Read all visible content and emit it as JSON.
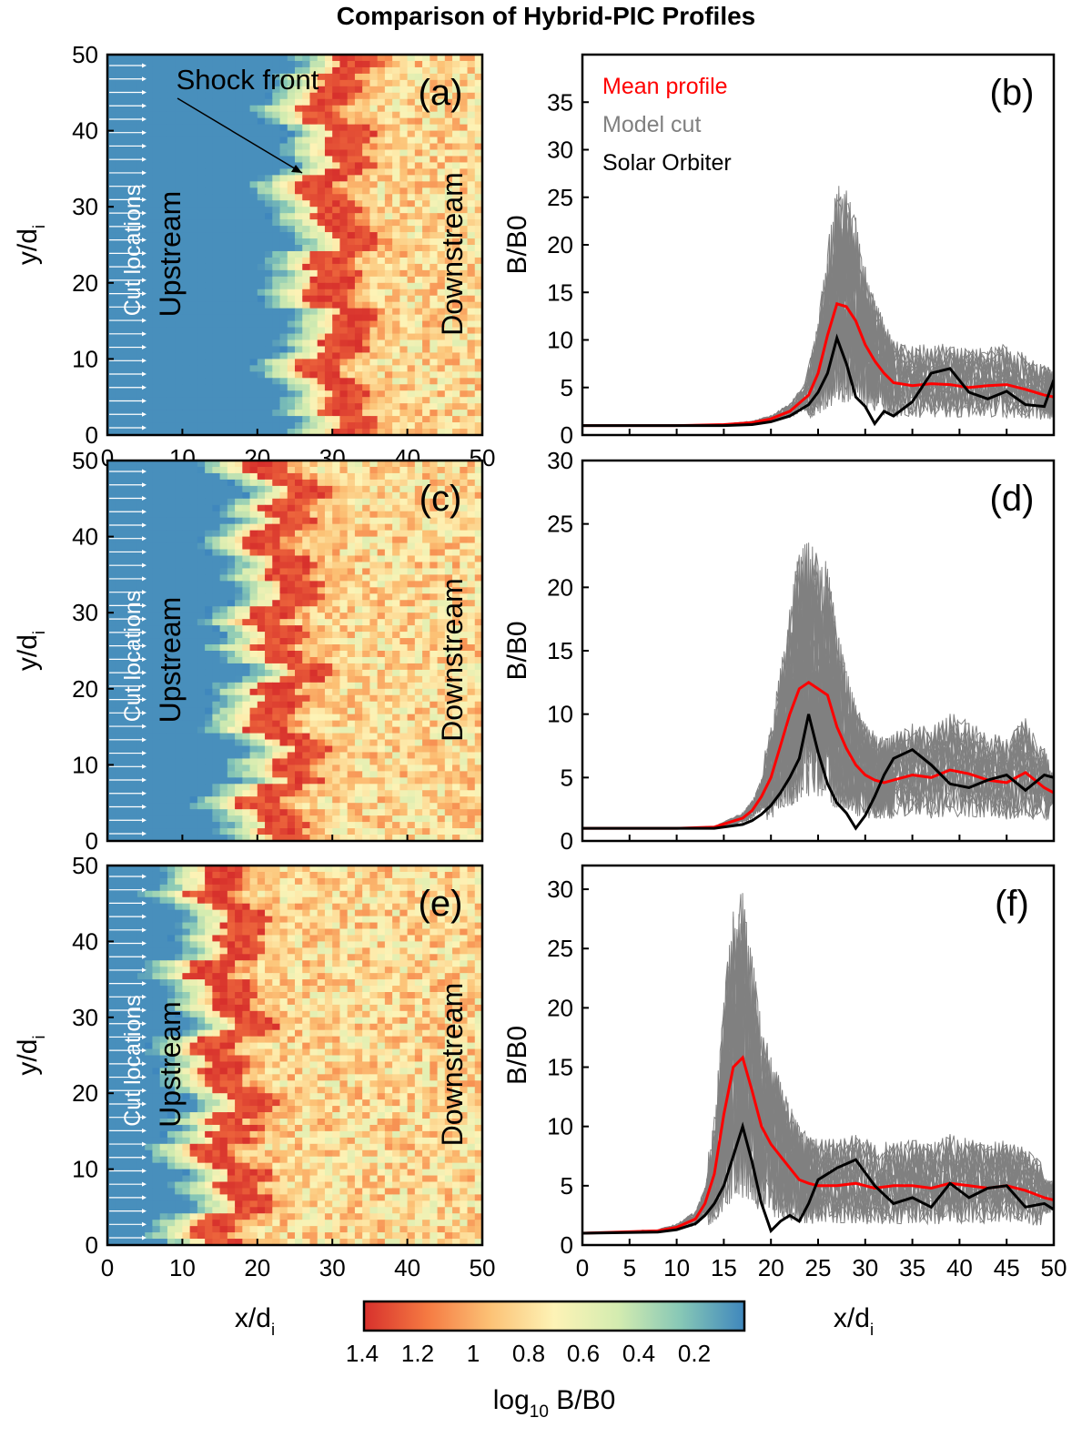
{
  "title": "Comparison of Hybrid-PIC Profiles",
  "colors": {
    "mean": "#ff0000",
    "model": "#808080",
    "solar": "#000000",
    "upstream": "#3b7db5",
    "colormap": [
      "#d7302c",
      "#f57a42",
      "#fcc276",
      "#fdf3b6",
      "#d4ecb0",
      "#86c7b6",
      "#3f87bd"
    ]
  },
  "annotations": {
    "shock_front": "Shock front",
    "upstream": "Upstream",
    "downstream": "Downstream",
    "cut_locations": "Cut locations"
  },
  "colorbar": {
    "ticks": [
      "1.4",
      "1.2",
      "1",
      "0.8",
      "0.6",
      "0.4",
      "0.2"
    ],
    "label": "log",
    "label_sub": "10",
    "label_tail": " B/B0"
  },
  "chart_data": [
    {
      "panel": "(a)",
      "type": "heatmap",
      "xlabel": "x/d",
      "xlabel_sub": "i",
      "ylabel": "y/d",
      "ylabel_sub": "i",
      "xlim": [
        0,
        50
      ],
      "ylim": [
        0,
        50
      ],
      "xticks": [
        "0",
        "10",
        "20",
        "30",
        "40",
        "50"
      ],
      "yticks": [
        "0",
        "10",
        "20",
        "30",
        "40",
        "50"
      ],
      "shock_x": 31
    },
    {
      "panel": "(b)",
      "type": "line",
      "ylabel": "B/B0",
      "xlim": [
        0,
        50
      ],
      "ylim": [
        0,
        40
      ],
      "yticks": [
        "0",
        "5",
        "10",
        "15",
        "20",
        "25",
        "30",
        "35"
      ],
      "legend": [
        "Mean profile",
        "Model cut",
        "Solar Orbiter"
      ],
      "legend_position": "top-left",
      "x": [
        0,
        10,
        15,
        18,
        20,
        22,
        24,
        25,
        26,
        27,
        28,
        29,
        30,
        31,
        32,
        33,
        35,
        37,
        39,
        41,
        43,
        45,
        47,
        49,
        50
      ],
      "series": [
        {
          "name": "Mean profile",
          "values": [
            1,
            1,
            1.1,
            1.3,
            1.7,
            2.5,
            4.2,
            6.5,
            10.5,
            13.8,
            13.5,
            12,
            9.5,
            7.8,
            6.5,
            5.5,
            5.2,
            5.4,
            5.3,
            5,
            5.2,
            5.3,
            4.8,
            4.2,
            4
          ]
        },
        {
          "name": "Solar Orbiter",
          "values": [
            1,
            1,
            1,
            1.1,
            1.4,
            2,
            3.2,
            4.5,
            6.5,
            10.2,
            7.5,
            4,
            3,
            1.2,
            2.5,
            2,
            3.5,
            6.5,
            7,
            4.5,
            3.8,
            4.6,
            3.2,
            3,
            5.8
          ]
        }
      ]
    },
    {
      "panel": "(c)",
      "type": "heatmap",
      "ylabel": "y/d",
      "ylabel_sub": "i",
      "xlim": [
        0,
        50
      ],
      "ylim": [
        0,
        50
      ],
      "yticks": [
        "0",
        "10",
        "20",
        "30",
        "40",
        "50"
      ],
      "shock_x": 24
    },
    {
      "panel": "(d)",
      "type": "line",
      "ylabel": "B/B0",
      "xlim": [
        0,
        50
      ],
      "ylim": [
        0,
        30
      ],
      "yticks": [
        "0",
        "5",
        "10",
        "15",
        "20",
        "25",
        "30"
      ],
      "x": [
        0,
        10,
        14,
        17,
        18,
        19,
        20,
        21,
        22,
        23,
        24,
        25,
        26,
        27,
        28,
        29,
        30,
        31,
        32,
        33,
        35,
        37,
        39,
        41,
        43,
        45,
        47,
        49,
        50
      ],
      "series": [
        {
          "name": "Mean profile",
          "values": [
            1,
            1,
            1.1,
            1.8,
            2.4,
            3.5,
            5,
            7.5,
            10,
            12,
            12.5,
            12,
            11.5,
            9,
            7.3,
            6,
            5.2,
            4.8,
            4.6,
            4.8,
            5.2,
            5,
            5.6,
            5.3,
            4.8,
            4.6,
            5.4,
            4.2,
            3.8
          ]
        },
        {
          "name": "Solar Orbiter",
          "values": [
            1,
            1,
            1,
            1.3,
            1.6,
            2.1,
            2.8,
            3.8,
            5,
            6.5,
            10,
            7,
            4.5,
            3,
            2.2,
            1,
            2,
            3.5,
            5.2,
            6.5,
            7.2,
            6,
            4.5,
            4.2,
            4.8,
            5.2,
            4,
            5.2,
            5
          ]
        }
      ]
    },
    {
      "panel": "(e)",
      "type": "heatmap",
      "xlabel": "x/d",
      "xlabel_sub": "i",
      "ylabel": "y/d",
      "ylabel_sub": "i",
      "xlim": [
        0,
        50
      ],
      "ylim": [
        0,
        50
      ],
      "xticks": [
        "0",
        "10",
        "20",
        "30",
        "40",
        "50"
      ],
      "yticks": [
        "0",
        "10",
        "20",
        "30",
        "40",
        "50"
      ],
      "shock_x": 17
    },
    {
      "panel": "(f)",
      "type": "line",
      "xlabel": "x/d",
      "xlabel_sub": "i",
      "ylabel": "B/B0",
      "xlim": [
        0,
        50
      ],
      "ylim": [
        0,
        32
      ],
      "xticks": [
        "0",
        "5",
        "10",
        "15",
        "20",
        "25",
        "30",
        "35",
        "40",
        "45",
        "50"
      ],
      "yticks": [
        "0",
        "5",
        "10",
        "15",
        "20",
        "25",
        "30"
      ],
      "x": [
        0,
        8,
        10,
        12,
        13,
        14,
        15,
        16,
        17,
        18,
        19,
        20,
        21,
        22,
        23,
        24,
        25,
        27,
        29,
        31,
        33,
        35,
        37,
        39,
        41,
        43,
        45,
        47,
        49,
        50
      ],
      "series": [
        {
          "name": "Mean profile",
          "values": [
            1,
            1.2,
            1.5,
            2.2,
            3.5,
            6,
            11,
            15,
            15.8,
            13,
            10,
            8.5,
            7.5,
            6.5,
            5.5,
            5.2,
            5,
            5,
            5.2,
            4.8,
            5,
            5,
            4.8,
            5.2,
            5,
            4.8,
            5,
            4.6,
            4,
            3.8
          ]
        },
        {
          "name": "Solar Orbiter",
          "values": [
            1,
            1.1,
            1.3,
            1.8,
            2.5,
            3.5,
            5,
            7.5,
            10,
            7,
            3.5,
            1.2,
            2,
            2.5,
            2,
            3.5,
            5.5,
            6.5,
            7.2,
            5,
            3.5,
            4,
            3.2,
            5.2,
            4,
            4.8,
            5,
            3.2,
            3.5,
            3
          ]
        }
      ]
    }
  ]
}
